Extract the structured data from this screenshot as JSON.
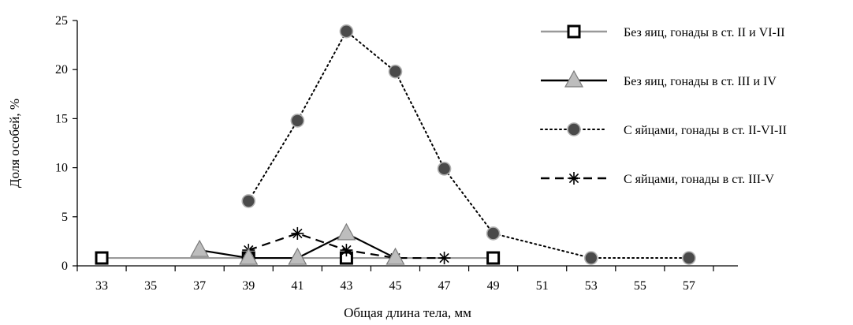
{
  "chart_data": {
    "type": "line",
    "xlabel": "Общая длина тела, мм",
    "ylabel": "Доля особей, %",
    "x_ticks": [
      "33",
      "35",
      "37",
      "39",
      "41",
      "43",
      "45",
      "47",
      "49",
      "51",
      "53",
      "55",
      "57"
    ],
    "y_ticks": [
      "0",
      "5",
      "10",
      "15",
      "20",
      "25"
    ],
    "xlim": [
      32,
      59
    ],
    "ylim": [
      0,
      25
    ],
    "grid": false,
    "legend_position": "right",
    "series": [
      {
        "name": "Без яиц, гонады в ст. II и  VI-II",
        "marker": "square",
        "line": "solid",
        "color": "#999999",
        "points": [
          [
            33,
            0.8
          ],
          [
            39,
            0.8
          ],
          [
            43,
            0.8
          ],
          [
            49,
            0.8
          ]
        ]
      },
      {
        "name": "Без яиц, гонады в ст. III и  IV",
        "marker": "triangle",
        "line": "solid",
        "color": "#000000",
        "points": [
          [
            37,
            1.6
          ],
          [
            39,
            0.8
          ],
          [
            41,
            0.8
          ],
          [
            43,
            3.3
          ],
          [
            45,
            0.8
          ]
        ]
      },
      {
        "name": "С яйцами, гонады в ст. II-VI-II",
        "marker": "circle",
        "line": "dotted",
        "color": "#000000",
        "points": [
          [
            39,
            6.6
          ],
          [
            41,
            14.8
          ],
          [
            43,
            23.9
          ],
          [
            45,
            19.8
          ],
          [
            47,
            9.9
          ],
          [
            49,
            3.3
          ],
          [
            53,
            0.8
          ],
          [
            57,
            0.8
          ]
        ]
      },
      {
        "name": "С яйцами, гонады в ст. III-V",
        "marker": "asterisk",
        "line": "dashed",
        "color": "#000000",
        "points": [
          [
            39,
            1.6
          ],
          [
            41,
            3.3
          ],
          [
            43,
            1.6
          ],
          [
            45,
            0.8
          ],
          [
            47,
            0.8
          ]
        ]
      }
    ]
  }
}
